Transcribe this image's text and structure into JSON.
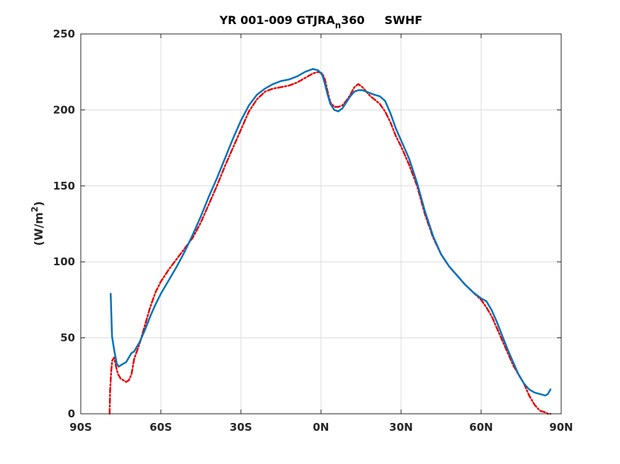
{
  "chart_data": {
    "type": "line",
    "title": {
      "prefix": "YR 001-009 GTJRA",
      "subscript": "n",
      "suffix": "360",
      "variable": "SWHF"
    },
    "ylabel": {
      "prefix": "(W/m",
      "superscript": "2",
      "suffix": ")"
    },
    "xlabel": "",
    "xlim": [
      -90,
      90
    ],
    "ylim": [
      0,
      250
    ],
    "x_ticks": [
      {
        "value": -90,
        "label": "90S"
      },
      {
        "value": -60,
        "label": "60S"
      },
      {
        "value": -30,
        "label": "30S"
      },
      {
        "value": 0,
        "label": "0N"
      },
      {
        "value": 30,
        "label": "30N"
      },
      {
        "value": 60,
        "label": "60N"
      },
      {
        "value": 90,
        "label": "90N"
      }
    ],
    "y_ticks": [
      {
        "value": 0,
        "label": "0"
      },
      {
        "value": 50,
        "label": "50"
      },
      {
        "value": 100,
        "label": "100"
      },
      {
        "value": 150,
        "label": "150"
      },
      {
        "value": 200,
        "label": "200"
      },
      {
        "value": 250,
        "label": "250"
      }
    ],
    "grid": true,
    "series": [
      {
        "color": "#0072bd",
        "style": "solid",
        "x": [
          -78.8,
          -78.3,
          -77.5,
          -76.5,
          -75.8,
          -75,
          -74,
          -73,
          -72,
          -71,
          -70,
          -68,
          -66,
          -64,
          -62,
          -60,
          -57,
          -54,
          -51,
          -48,
          -45,
          -42,
          -39,
          -36,
          -33,
          -30,
          -27,
          -24,
          -21,
          -18,
          -15,
          -12,
          -9,
          -6,
          -3,
          -1,
          0.5,
          1.5,
          2.5,
          3.5,
          5,
          6.5,
          8,
          9.5,
          11,
          12.5,
          14,
          15.5,
          17,
          18.5,
          20,
          22,
          24,
          26,
          28,
          30,
          33,
          36,
          39,
          42,
          45,
          48,
          51,
          54,
          57,
          60,
          62,
          64,
          66,
          68,
          70,
          72,
          74,
          76,
          78,
          80,
          82,
          84,
          85,
          86
        ],
        "y": [
          79,
          51,
          42,
          33,
          31,
          32,
          33,
          34,
          37,
          40,
          41,
          47,
          55,
          64,
          72,
          79,
          88,
          97,
          107,
          118,
          130,
          143,
          155,
          168,
          181,
          193,
          203,
          210,
          214,
          217,
          219,
          220,
          222,
          225,
          227,
          226,
          223,
          217,
          210,
          204,
          200,
          199,
          201,
          205,
          209,
          212,
          213,
          213,
          212,
          211,
          210,
          209,
          206,
          198,
          188,
          180,
          168,
          152,
          133,
          117,
          105,
          97,
          91,
          85,
          80,
          76,
          74,
          68,
          60,
          51,
          42,
          34,
          26,
          20,
          16,
          14,
          13,
          12,
          13,
          16
        ]
      },
      {
        "color": "#e80000",
        "style": "dash-dot",
        "x": [
          -79.2,
          -79,
          -78.6,
          -78.2,
          -77.5,
          -77,
          -76.5,
          -76,
          -75,
          -74,
          -73,
          -72,
          -71,
          -70,
          -68,
          -66,
          -64,
          -62,
          -60,
          -57,
          -54,
          -51,
          -48,
          -45,
          -42,
          -39,
          -36,
          -33,
          -30,
          -27,
          -24,
          -21,
          -18,
          -15,
          -12,
          -9,
          -6,
          -3,
          -1,
          0.5,
          1.5,
          2.5,
          3.5,
          5,
          6.5,
          8,
          9.5,
          11,
          12.5,
          14,
          15.5,
          17,
          18.5,
          20,
          22,
          24,
          26,
          28,
          30,
          33,
          36,
          39,
          42,
          45,
          48,
          51,
          54,
          57,
          60,
          62,
          64,
          66,
          68,
          70,
          72,
          74,
          76,
          78,
          80,
          82,
          84,
          85,
          86
        ],
        "y": [
          0,
          15,
          28,
          35,
          37,
          33,
          29,
          26,
          23,
          22,
          21,
          22,
          26,
          36,
          46,
          58,
          70,
          80,
          87,
          95,
          102,
          109,
          116,
          126,
          138,
          150,
          163,
          175,
          187,
          199,
          207,
          212,
          214,
          215,
          216,
          218,
          221,
          224,
          225,
          224,
          220,
          212,
          205,
          202,
          202,
          203,
          206,
          210,
          215,
          217,
          215,
          212,
          209,
          207,
          204,
          199,
          192,
          183,
          176,
          164,
          150,
          131,
          116,
          105,
          97,
          91,
          85,
          80,
          75,
          70,
          64,
          56,
          48,
          40,
          32,
          26,
          20,
          12,
          6,
          2,
          1,
          0,
          0
        ]
      }
    ]
  }
}
